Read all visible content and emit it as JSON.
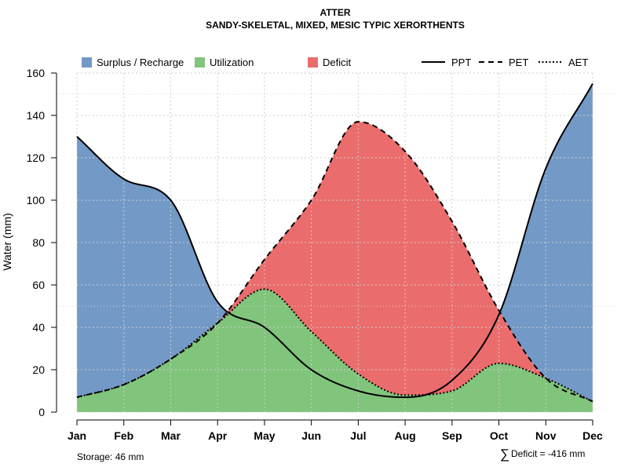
{
  "chart_data": {
    "type": "area",
    "title": "ATTER",
    "subtitle": "SANDY-SKELETAL, MIXED, MESIC TYPIC XERORTHENTS",
    "xlabel": "",
    "ylabel": "Water (mm)",
    "ylim": [
      0,
      160
    ],
    "yticks": [
      "0",
      "20",
      "40",
      "60",
      "80",
      "100",
      "120",
      "140",
      "160"
    ],
    "categories": [
      "Jan",
      "Feb",
      "Mar",
      "Apr",
      "May",
      "Jun",
      "Jul",
      "Aug",
      "Sep",
      "Oct",
      "Nov",
      "Dec"
    ],
    "series": [
      {
        "name": "PPT",
        "style": "solid",
        "values": [
          130,
          110,
          100,
          52,
          40,
          20,
          10,
          7,
          15,
          46,
          115,
          155
        ]
      },
      {
        "name": "PET",
        "style": "dashed",
        "values": [
          7,
          13,
          25,
          42,
          72,
          100,
          137,
          123,
          90,
          48,
          16,
          5
        ]
      },
      {
        "name": "AET",
        "style": "dotted",
        "values": [
          7,
          13,
          25,
          42,
          58,
          38,
          18,
          8,
          10,
          23,
          16,
          5
        ]
      }
    ],
    "legend": {
      "position": "top",
      "fills": [
        {
          "label": "Surplus / Recharge",
          "color": "#7399c6"
        },
        {
          "label": "Utilization",
          "color": "#80c57b"
        },
        {
          "label": "Deficit",
          "color": "#eb6c6c"
        }
      ],
      "lines": [
        {
          "label": "PPT",
          "style": "solid"
        },
        {
          "label": "PET",
          "style": "dashed"
        },
        {
          "label": "AET",
          "style": "dotted"
        }
      ]
    },
    "reference_lines": [
      50,
      150
    ],
    "grid": true,
    "annotations": {
      "storage": "Storage: 46 mm",
      "deficit_symbol": "∑",
      "deficit": "Deficit = -416 mm"
    }
  }
}
